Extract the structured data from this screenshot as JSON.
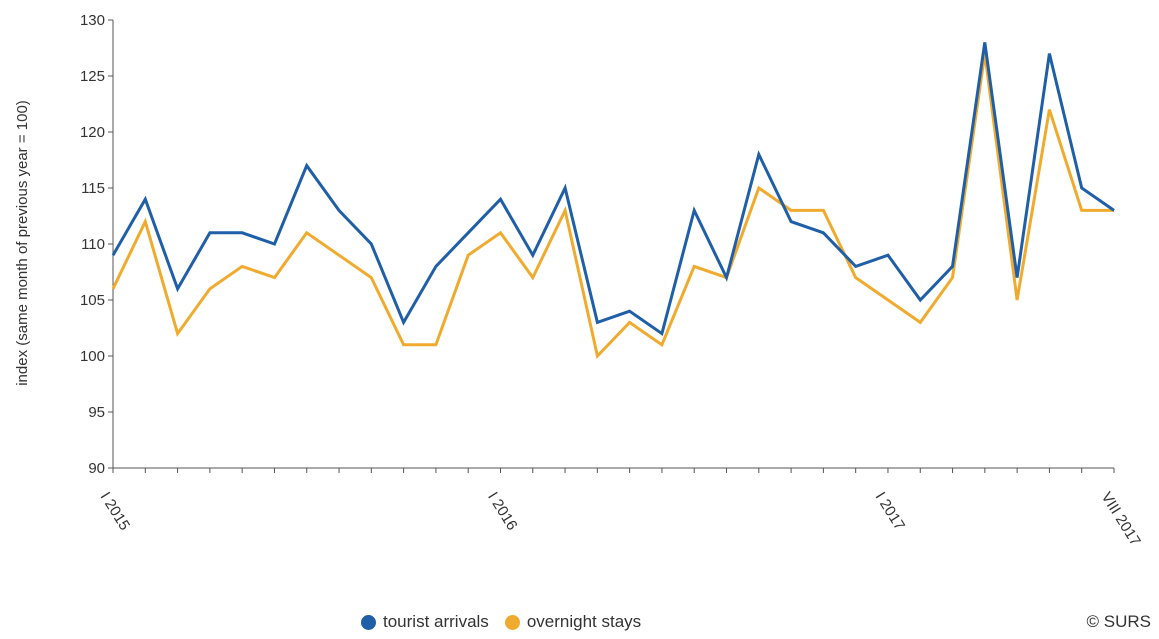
{
  "chart_data": {
    "type": "line",
    "ylabel": "index (same month of previous year = 100)",
    "ylim": [
      90,
      130
    ],
    "yticks": [
      90,
      95,
      100,
      105,
      110,
      115,
      120,
      125,
      130
    ],
    "ytick_labels": [
      "90",
      "95",
      "100",
      "105",
      "110",
      "115",
      "120",
      "125",
      "130"
    ],
    "x": [
      "I 2015",
      "II 2015",
      "III 2015",
      "IV 2015",
      "V 2015",
      "VI 2015",
      "VII 2015",
      "VIII 2015",
      "IX 2015",
      "X 2015",
      "XI 2015",
      "XII 2015",
      "I 2016",
      "II 2016",
      "III 2016",
      "IV 2016",
      "V 2016",
      "VI 2016",
      "VII 2016",
      "VIII 2016",
      "IX 2016",
      "X 2016",
      "XI 2016",
      "XII 2016",
      "I 2017",
      "II 2017",
      "III 2017",
      "IV 2017",
      "V 2017",
      "VI 2017",
      "VII 2017",
      "VIII 2017"
    ],
    "xtick_labels": [
      {
        "index": 0,
        "label": "I 2015"
      },
      {
        "index": 12,
        "label": "I 2016"
      },
      {
        "index": 24,
        "label": "I 2017"
      },
      {
        "index": 31,
        "label": "VIII 2017"
      }
    ],
    "series": [
      {
        "name": "tourist arrivals",
        "color": "#1f5fa8",
        "values": [
          109,
          114,
          106,
          111,
          111,
          110,
          117,
          113,
          110,
          103,
          108,
          111,
          114,
          109,
          115,
          103,
          104,
          102,
          113,
          107,
          118,
          112,
          111,
          108,
          109,
          105,
          108,
          128,
          107,
          127,
          115,
          113
        ]
      },
      {
        "name": "overnight stays",
        "color": "#f0ab2e",
        "values": [
          106,
          112,
          102,
          106,
          108,
          107,
          111,
          109,
          107,
          101,
          101,
          109,
          111,
          107,
          113,
          100,
          103,
          101,
          108,
          107,
          115,
          113,
          113,
          107,
          105,
          103,
          107,
          127,
          105,
          122,
          113,
          113
        ]
      }
    ],
    "grid": false,
    "legend_position": "bottom"
  },
  "legend": {
    "items": [
      {
        "label": "tourist arrivals",
        "color": "#1f5fa8"
      },
      {
        "label": "overnight stays",
        "color": "#f0ab2e"
      }
    ]
  },
  "copyright": "© SURS"
}
